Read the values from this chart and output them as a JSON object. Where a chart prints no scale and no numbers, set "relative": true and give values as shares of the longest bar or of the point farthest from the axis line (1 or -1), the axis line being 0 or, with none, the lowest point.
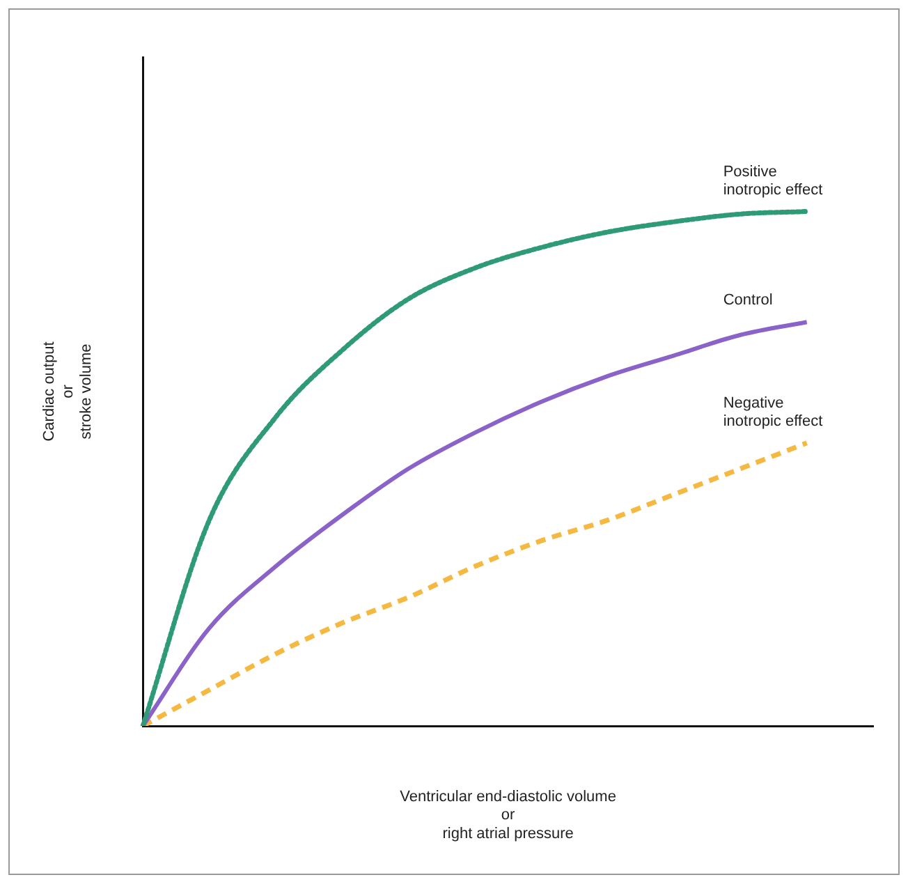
{
  "chart_data": {
    "type": "line",
    "relative": true,
    "xlabel": "Ventricular end-diastolic volume\nor\nright atrial pressure",
    "ylabel": "Cardiac output\nor\nstroke volume",
    "categories": [
      null,
      null,
      null,
      null,
      null,
      null,
      null,
      null,
      null,
      null,
      null,
      null
    ],
    "grid": false,
    "legend": false,
    "marker": "none",
    "series": [
      {
        "name": "Positive\ninotropic effect",
        "color": "#2e9a78",
        "line_style": "dotted",
        "values": [
          0,
          0.4,
          0.6,
          0.73,
          0.83,
          0.89,
          0.93,
          0.96,
          0.98,
          0.995,
          1.0,
          null
        ]
      },
      {
        "name": "Control",
        "color": "#8a62c8",
        "line_style": "solid",
        "values": [
          0,
          0.19,
          0.31,
          0.41,
          0.5,
          0.57,
          0.63,
          0.68,
          0.72,
          0.76,
          0.785,
          null
        ]
      },
      {
        "name": "Negative\ninotropic effect",
        "color": "#f5b942",
        "line_style": "dashed",
        "values": [
          0,
          0.07,
          0.14,
          0.2,
          0.25,
          0.31,
          0.36,
          0.4,
          0.45,
          0.5,
          0.55,
          null
        ]
      }
    ]
  }
}
